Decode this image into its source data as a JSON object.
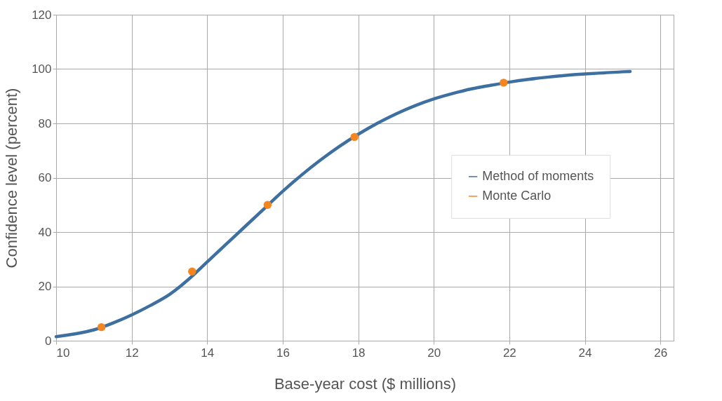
{
  "chart_data": {
    "type": "line",
    "xlabel": "Base-year cost ($ millions)",
    "ylabel": "Confidence level (percent)",
    "xlim": [
      10,
      26.35
    ],
    "xticks": [
      10,
      12,
      14,
      16,
      18,
      20,
      22,
      24,
      26
    ],
    "ylim": [
      0,
      120
    ],
    "yticks": [
      0,
      20,
      40,
      60,
      80,
      100,
      120
    ],
    "grid": true,
    "legend": "right",
    "series": [
      {
        "name": "Method of moments",
        "color": "#3d6fa0",
        "marker": "none",
        "line_style": "solid",
        "x": [
          10,
          10.5,
          11,
          11.5,
          12,
          12.5,
          13,
          13.5,
          14,
          14.5,
          15,
          15.5,
          16,
          16.5,
          17,
          17.5,
          18,
          18.5,
          19,
          19.5,
          20,
          20.5,
          21,
          21.5,
          22,
          22.5,
          23,
          23.5,
          24,
          24.5,
          25,
          25.2
        ],
        "values": [
          1.5,
          2.5,
          4,
          6.5,
          9.5,
          13,
          17,
          22.5,
          29,
          35.5,
          42,
          48.5,
          55,
          61,
          66.5,
          71.5,
          76,
          80,
          83.5,
          86.5,
          89,
          91,
          92.7,
          94,
          95.2,
          96.2,
          97,
          97.7,
          98.2,
          98.6,
          99,
          99.1
        ]
      },
      {
        "name": "Monte Carlo",
        "type": "scatter",
        "color": "#f5861f",
        "marker": "circle",
        "x": [
          11.2,
          13.6,
          15.6,
          17.9,
          21.85
        ],
        "values": [
          5,
          25.5,
          50,
          75,
          95
        ]
      }
    ]
  }
}
